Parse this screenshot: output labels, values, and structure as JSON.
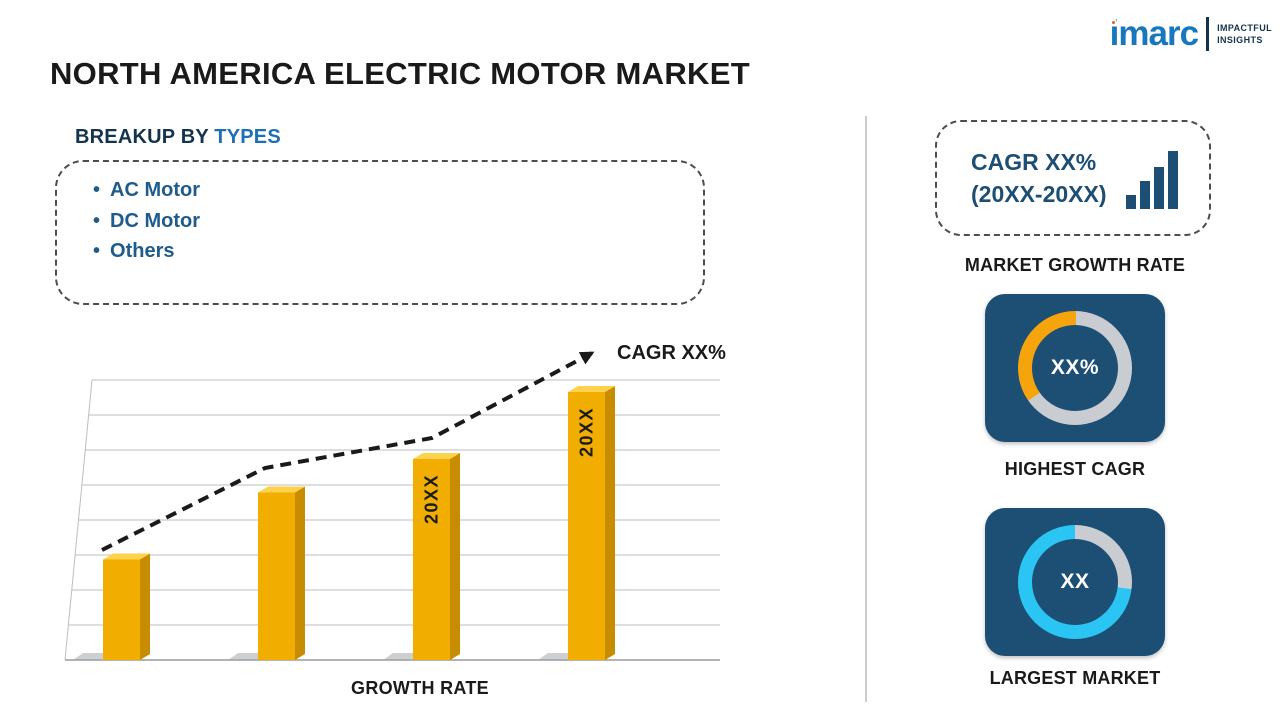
{
  "logo": {
    "brand": "imarc",
    "tagline_line1": "IMPACTFUL",
    "tagline_line2": "INSIGHTS"
  },
  "title": "NORTH AMERICA ELECTRIC MOTOR MARKET",
  "breakup": {
    "heading_prefix": "BREAKUP BY ",
    "heading_highlight": "TYPES",
    "bullet": "•",
    "items": [
      "AC Motor",
      "DC Motor",
      "Others"
    ]
  },
  "right_panel": {
    "cagr_line1": "CAGR XX%",
    "cagr_line2": "(20XX-20XX)",
    "market_growth_rate_label": "MARKET GROWTH RATE"
  },
  "chart_data": [
    {
      "type": "bar",
      "title": "",
      "xlabel": "GROWTH RATE",
      "ylabel": "",
      "categories": [
        "",
        "",
        "20XX",
        "20XX"
      ],
      "bar_labels": [
        "",
        "",
        "20XX",
        "20XX"
      ],
      "values": [
        30,
        50,
        60,
        80
      ],
      "ylim": [
        0,
        95
      ],
      "grid": true,
      "bar_color": "#f2ae00",
      "trend_label": "CAGR XX%",
      "trend_style": "dashed-arrow"
    },
    {
      "type": "pie",
      "subtype": "donut",
      "title": "HIGHEST CAGR",
      "center_label": "XX%",
      "from_deg": 235,
      "slices": [
        {
          "label": "highest-cagr-share",
          "value": 35,
          "color": "#f5a50b"
        },
        {
          "label": "remainder",
          "value": 65,
          "color": "#c9cdd1"
        }
      ]
    },
    {
      "type": "pie",
      "subtype": "donut",
      "title": "LARGEST MARKET",
      "center_label": "XX",
      "from_deg": 0,
      "slices": [
        {
          "label": "remainder",
          "value": 27,
          "color": "#c9cdd1"
        },
        {
          "label": "largest-market-share",
          "value": 73,
          "color": "#2bc5f4"
        }
      ]
    }
  ],
  "colors": {
    "text_dark": "#1a1a1a",
    "heading_navy": "#14344e",
    "accent_blue": "#1e6fb8",
    "list_blue": "#1f5c8b",
    "navy_card": "#1d4e74",
    "bar_gold": "#f2ae00",
    "bar_gold_dark": "#c78c00",
    "bar_gold_light": "#ffd24d",
    "ring_gray": "#c9cdd1",
    "cyan": "#2bc5f4",
    "gold": "#f5a50b",
    "logo_blue": "#1878bd",
    "logo_orange": "#f15a24",
    "divider_gray": "#cccccc",
    "grid_gray": "#bdbdbd"
  }
}
